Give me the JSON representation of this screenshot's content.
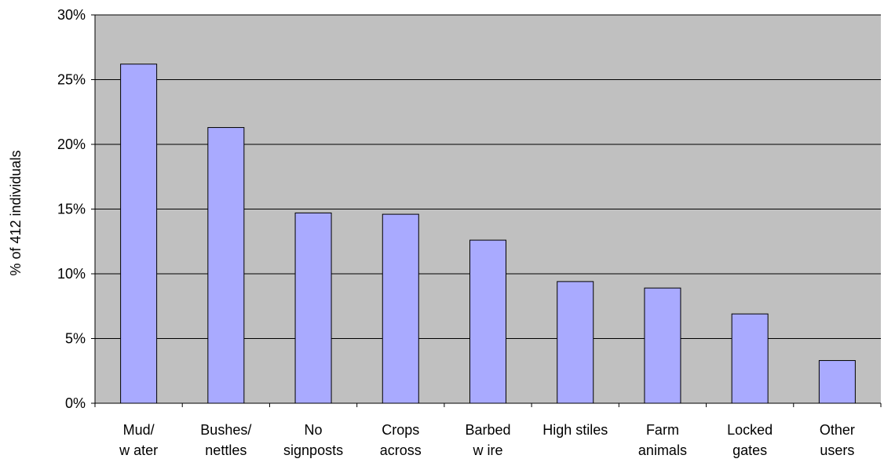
{
  "chart_data": {
    "type": "bar",
    "ylabel": "% of 412 individuals",
    "xlabel": "",
    "categories": [
      [
        "Mud/",
        "w ater"
      ],
      [
        "Bushes/",
        "nettles"
      ],
      [
        "No",
        "signposts"
      ],
      [
        "Crops",
        "across"
      ],
      [
        "Barbed",
        "w ire"
      ],
      [
        "High stiles"
      ],
      [
        "Farm",
        "animals"
      ],
      [
        "Locked",
        "gates"
      ],
      [
        "Other",
        "users"
      ]
    ],
    "values": [
      26.2,
      21.3,
      14.7,
      14.6,
      12.6,
      9.4,
      8.9,
      6.9,
      3.3
    ],
    "ylim": [
      0,
      30
    ],
    "yticks": [
      0,
      5,
      10,
      15,
      20,
      25,
      30
    ],
    "ytick_labels": [
      "0%",
      "5%",
      "10%",
      "15%",
      "20%",
      "25%",
      "30%"
    ],
    "grid": true,
    "colors": {
      "plot_background": "#c0c0c0",
      "bar_fill": "#a9aaff",
      "bar_stroke": "#000000",
      "gridline": "#000000"
    }
  }
}
